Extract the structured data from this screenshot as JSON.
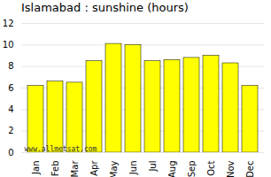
{
  "chart_data": {
    "type": "bar",
    "title": "Islamabad : sunshine (hours)",
    "categories": [
      "Jan",
      "Feb",
      "Mar",
      "Apr",
      "May",
      "Jun",
      "Jul",
      "Aug",
      "Sep",
      "Oct",
      "Nov",
      "Dec"
    ],
    "values": [
      6.2,
      6.6,
      6.5,
      8.5,
      10.1,
      10.0,
      8.5,
      8.6,
      8.8,
      9.0,
      8.3,
      6.2
    ],
    "color": "#ffff00",
    "ylim": [
      0,
      12
    ],
    "yticks": [
      0,
      2,
      4,
      6,
      8,
      10,
      12
    ],
    "grid": true,
    "annotations": [
      "www.allmetsat.com"
    ]
  }
}
